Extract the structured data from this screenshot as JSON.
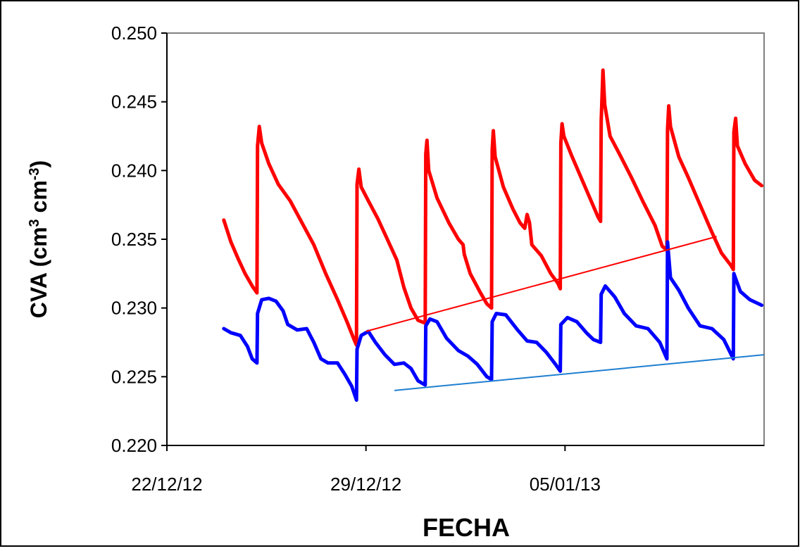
{
  "chart_data": {
    "type": "line",
    "title": "",
    "xlabel": "FECHA",
    "ylabel_main": "CVA (cm",
    "ylabel_sup1": "3",
    "ylabel_mid": " cm",
    "ylabel_sup2": "-3",
    "ylabel_end": ")",
    "ylim": [
      0.22,
      0.25
    ],
    "yticks": [
      "0.220",
      "0.225",
      "0.230",
      "0.235",
      "0.240",
      "0.245",
      "0.250"
    ],
    "xlim": [
      "2012-12-22",
      "2013-01-12"
    ],
    "xticks": [
      {
        "date": "2012-12-22",
        "label": "22/12/12"
      },
      {
        "date": "2012-12-29",
        "label": "29/12/12"
      },
      {
        "date": "2013-01-05",
        "label": "05/01/13"
      }
    ],
    "grid": false,
    "colors": {
      "red_series": "#ff0000",
      "blue_series": "#0000ff",
      "red_trend": "#ff0000",
      "blue_trend": "#1f7fd0"
    },
    "series": [
      {
        "color": "#ff0000",
        "points": [
          [
            "2012-12-24 00:00",
            0.2364
          ],
          [
            "2012-12-24 06:00",
            0.2348
          ],
          [
            "2012-12-24 12:00",
            0.2336
          ],
          [
            "2012-12-24 18:00",
            0.2325
          ],
          [
            "2012-12-25 00:00",
            0.2316
          ],
          [
            "2012-12-25 04:00",
            0.2311
          ],
          [
            "2012-12-25 04:30",
            0.2418
          ],
          [
            "2012-12-25 06:00",
            0.2432
          ],
          [
            "2012-12-25 08:00",
            0.242
          ],
          [
            "2012-12-25 14:00",
            0.2405
          ],
          [
            "2012-12-25 22:00",
            0.239
          ],
          [
            "2012-12-26 08:00",
            0.2378
          ],
          [
            "2012-12-26 18:00",
            0.2362
          ],
          [
            "2012-12-27 04:00",
            0.2346
          ],
          [
            "2012-12-27 14:00",
            0.2325
          ],
          [
            "2012-12-28 00:00",
            0.2306
          ],
          [
            "2012-12-28 08:00",
            0.229
          ],
          [
            "2012-12-28 14:00",
            0.2277
          ],
          [
            "2012-12-28 16:00",
            0.2273
          ],
          [
            "2012-12-28 16:30",
            0.239
          ],
          [
            "2012-12-28 18:00",
            0.2401
          ],
          [
            "2012-12-28 20:00",
            0.2388
          ],
          [
            "2012-12-29 02:00",
            0.2378
          ],
          [
            "2012-12-29 10:00",
            0.2365
          ],
          [
            "2012-12-29 18:00",
            0.235
          ],
          [
            "2012-12-30 02:00",
            0.2335
          ],
          [
            "2012-12-30 08:00",
            0.2315
          ],
          [
            "2012-12-30 14:00",
            0.23
          ],
          [
            "2012-12-30 20:00",
            0.2291
          ],
          [
            "2012-12-31 02:00",
            0.2289
          ],
          [
            "2012-12-31 02:30",
            0.2412
          ],
          [
            "2012-12-31 03:30",
            0.2422
          ],
          [
            "2012-12-31 05:00",
            0.24
          ],
          [
            "2012-12-31 12:00",
            0.238
          ],
          [
            "2012-12-31 22:00",
            0.2362
          ],
          [
            "2013-01-01 06:00",
            0.235
          ],
          [
            "2013-01-01 10:00",
            0.2346
          ],
          [
            "2013-01-01 11:00",
            0.2339
          ],
          [
            "2013-01-01 16:00",
            0.2325
          ],
          [
            "2013-01-02 00:00",
            0.2312
          ],
          [
            "2013-01-02 06:00",
            0.2303
          ],
          [
            "2013-01-02 10:00",
            0.23
          ],
          [
            "2013-01-02 10:30",
            0.2415
          ],
          [
            "2013-01-02 11:30",
            0.2429
          ],
          [
            "2013-01-02 13:00",
            0.241
          ],
          [
            "2013-01-02 20:00",
            0.2388
          ],
          [
            "2013-01-03 04:00",
            0.2372
          ],
          [
            "2013-01-03 10:00",
            0.2362
          ],
          [
            "2013-01-03 14:00",
            0.2358
          ],
          [
            "2013-01-03 16:00",
            0.2368
          ],
          [
            "2013-01-03 18:00",
            0.2362
          ],
          [
            "2013-01-03 20:00",
            0.2346
          ],
          [
            "2013-01-04 04:00",
            0.2338
          ],
          [
            "2013-01-04 12:00",
            0.2325
          ],
          [
            "2013-01-04 18:00",
            0.2318
          ],
          [
            "2013-01-04 20:00",
            0.2314
          ],
          [
            "2013-01-04 20:30",
            0.242
          ],
          [
            "2013-01-04 21:30",
            0.2434
          ],
          [
            "2013-01-04 23:00",
            0.2425
          ],
          [
            "2013-01-05 06:00",
            0.241
          ],
          [
            "2013-01-05 14:00",
            0.2394
          ],
          [
            "2013-01-05 22:00",
            0.2378
          ],
          [
            "2013-01-06 04:00",
            0.2366
          ],
          [
            "2013-01-06 06:00",
            0.2363
          ],
          [
            "2013-01-06 06:30",
            0.2436
          ],
          [
            "2013-01-06 08:00",
            0.2473
          ],
          [
            "2013-01-06 09:30",
            0.2448
          ],
          [
            "2013-01-06 14:00",
            0.2425
          ],
          [
            "2013-01-06 22:00",
            0.2412
          ],
          [
            "2013-01-07 08:00",
            0.2395
          ],
          [
            "2013-01-07 18:00",
            0.2377
          ],
          [
            "2013-01-08 04:00",
            0.236
          ],
          [
            "2013-01-08 10:00",
            0.2345
          ],
          [
            "2013-01-08 14:00",
            0.2342
          ],
          [
            "2013-01-08 14:30",
            0.243
          ],
          [
            "2013-01-08 15:30",
            0.2447
          ],
          [
            "2013-01-08 17:00",
            0.2432
          ],
          [
            "2013-01-09 00:00",
            0.241
          ],
          [
            "2013-01-09 08:00",
            0.2395
          ],
          [
            "2013-01-09 18:00",
            0.2375
          ],
          [
            "2013-01-10 04:00",
            0.2355
          ],
          [
            "2013-01-10 12:00",
            0.234
          ],
          [
            "2013-01-10 20:00",
            0.2331
          ],
          [
            "2013-01-10 22:00",
            0.2328
          ],
          [
            "2013-01-10 22:30",
            0.2428
          ],
          [
            "2013-01-11 00:00",
            0.2438
          ],
          [
            "2013-01-11 01:30",
            0.2418
          ],
          [
            "2013-01-11 08:00",
            0.2405
          ],
          [
            "2013-01-11 16:00",
            0.2393
          ],
          [
            "2013-01-11 22:00",
            0.2389
          ]
        ]
      },
      {
        "color": "#0000ff",
        "points": [
          [
            "2012-12-24 00:00",
            0.2285
          ],
          [
            "2012-12-24 06:00",
            0.2282
          ],
          [
            "2012-12-24 14:00",
            0.228
          ],
          [
            "2012-12-24 20:00",
            0.2272
          ],
          [
            "2012-12-25 00:00",
            0.2263
          ],
          [
            "2012-12-25 04:00",
            0.226
          ],
          [
            "2012-12-25 04:30",
            0.2296
          ],
          [
            "2012-12-25 08:00",
            0.2306
          ],
          [
            "2012-12-25 14:00",
            0.2307
          ],
          [
            "2012-12-25 20:00",
            0.2305
          ],
          [
            "2012-12-26 02:00",
            0.2298
          ],
          [
            "2012-12-26 06:00",
            0.2288
          ],
          [
            "2012-12-26 14:00",
            0.2284
          ],
          [
            "2012-12-26 22:00",
            0.2285
          ],
          [
            "2012-12-27 04:00",
            0.2275
          ],
          [
            "2012-12-27 10:00",
            0.2263
          ],
          [
            "2012-12-27 16:00",
            0.226
          ],
          [
            "2012-12-28 00:00",
            0.226
          ],
          [
            "2012-12-28 06:00",
            0.2252
          ],
          [
            "2012-12-28 12:00",
            0.2243
          ],
          [
            "2012-12-28 16:00",
            0.2233
          ],
          [
            "2012-12-28 16:30",
            0.227
          ],
          [
            "2012-12-28 20:00",
            0.228
          ],
          [
            "2012-12-29 02:00",
            0.2283
          ],
          [
            "2012-12-29 08:00",
            0.2275
          ],
          [
            "2012-12-29 16:00",
            0.2266
          ],
          [
            "2012-12-30 00:00",
            0.2259
          ],
          [
            "2012-12-30 08:00",
            0.226
          ],
          [
            "2012-12-30 14:00",
            0.2256
          ],
          [
            "2012-12-30 20:00",
            0.2247
          ],
          [
            "2012-12-31 02:00",
            0.2244
          ],
          [
            "2012-12-31 02:30",
            0.2287
          ],
          [
            "2012-12-31 06:00",
            0.2292
          ],
          [
            "2012-12-31 12:00",
            0.229
          ],
          [
            "2012-12-31 20:00",
            0.2278
          ],
          [
            "2013-01-01 06:00",
            0.2269
          ],
          [
            "2013-01-01 14:00",
            0.2265
          ],
          [
            "2013-01-01 22:00",
            0.2259
          ],
          [
            "2013-01-02 06:00",
            0.225
          ],
          [
            "2013-01-02 10:00",
            0.2248
          ],
          [
            "2013-01-02 10:30",
            0.229
          ],
          [
            "2013-01-02 14:00",
            0.2296
          ],
          [
            "2013-01-02 22:00",
            0.2295
          ],
          [
            "2013-01-03 08:00",
            0.2284
          ],
          [
            "2013-01-03 16:00",
            0.2276
          ],
          [
            "2013-01-04 00:00",
            0.2275
          ],
          [
            "2013-01-04 08:00",
            0.2268
          ],
          [
            "2013-01-04 16:00",
            0.2259
          ],
          [
            "2013-01-04 20:00",
            0.2254
          ],
          [
            "2013-01-04 20:30",
            0.2288
          ],
          [
            "2013-01-05 02:00",
            0.2293
          ],
          [
            "2013-01-05 10:00",
            0.229
          ],
          [
            "2013-01-05 18:00",
            0.2282
          ],
          [
            "2013-01-06 00:00",
            0.2277
          ],
          [
            "2013-01-06 06:00",
            0.2275
          ],
          [
            "2013-01-06 06:30",
            0.231
          ],
          [
            "2013-01-06 10:00",
            0.2316
          ],
          [
            "2013-01-06 18:00",
            0.2308
          ],
          [
            "2013-01-07 02:00",
            0.2296
          ],
          [
            "2013-01-07 12:00",
            0.2287
          ],
          [
            "2013-01-07 22:00",
            0.2285
          ],
          [
            "2013-01-08 08:00",
            0.2275
          ],
          [
            "2013-01-08 14:00",
            0.2263
          ],
          [
            "2013-01-08 14:30",
            0.2348
          ],
          [
            "2013-01-08 17:00",
            0.2322
          ],
          [
            "2013-01-09 00:00",
            0.2313
          ],
          [
            "2013-01-09 08:00",
            0.23
          ],
          [
            "2013-01-09 18:00",
            0.2287
          ],
          [
            "2013-01-10 04:00",
            0.2285
          ],
          [
            "2013-01-10 14:00",
            0.2277
          ],
          [
            "2013-01-10 22:00",
            0.2263
          ],
          [
            "2013-01-10 22:30",
            0.2325
          ],
          [
            "2013-01-11 04:00",
            0.2312
          ],
          [
            "2013-01-11 12:00",
            0.2306
          ],
          [
            "2013-01-11 22:00",
            0.2302
          ]
        ]
      }
    ],
    "trendlines": [
      {
        "color": "#ff0000",
        "points": [
          [
            "2012-12-29 00:00",
            0.2283
          ],
          [
            "2013-01-10 08:00",
            0.2352
          ]
        ]
      },
      {
        "color": "#1f7fd0",
        "points": [
          [
            "2012-12-30 00:00",
            0.224
          ],
          [
            "2013-01-12 00:00",
            0.2266
          ]
        ]
      }
    ]
  }
}
